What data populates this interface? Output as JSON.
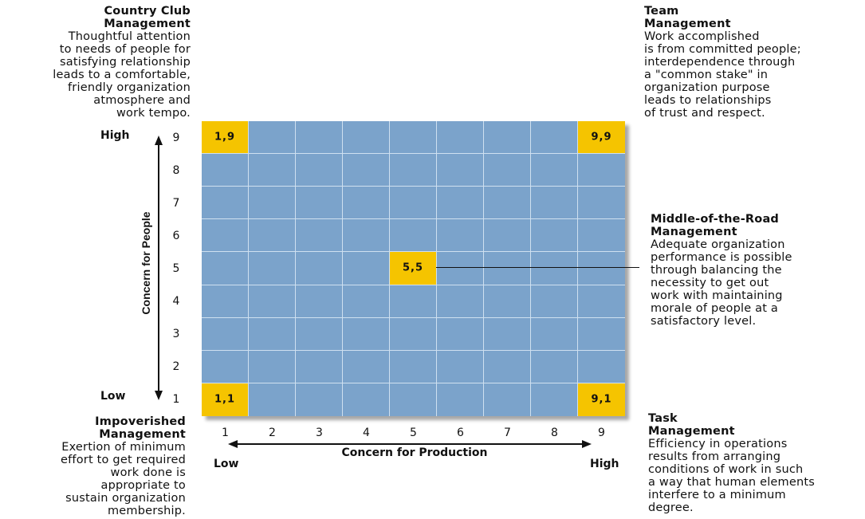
{
  "diagram": {
    "y_axis_title": "Concern for People",
    "x_axis_title": "Concern for Production",
    "y_high": "High",
    "y_low": "Low",
    "x_low": "Low",
    "x_high": "High",
    "y_ticks": [
      "9",
      "8",
      "7",
      "6",
      "5",
      "4",
      "3",
      "2",
      "1"
    ],
    "x_ticks": [
      "1",
      "2",
      "3",
      "4",
      "5",
      "6",
      "7",
      "8",
      "9"
    ],
    "highlight_cells": [
      {
        "label": "1,9",
        "x": 1,
        "y": 9
      },
      {
        "label": "9,9",
        "x": 9,
        "y": 9
      },
      {
        "label": "5,5",
        "x": 5,
        "y": 5
      },
      {
        "label": "1,1",
        "x": 1,
        "y": 1
      },
      {
        "label": "9,1",
        "x": 9,
        "y": 1
      }
    ],
    "grid_color": "#7ba3cb",
    "highlight_color": "#f5c400"
  },
  "styles": {
    "country_club": {
      "title": "Country Club\nManagement",
      "body": "Thoughtful attention\nto needs of people for\nsatisfying relationship\nleads to a comfortable,\nfriendly organization\natmosphere and\nwork tempo."
    },
    "team": {
      "title": "Team\nManagement",
      "body": "Work accomplished\nis from committed people;\ninterdependence through\na \"common stake\" in\norganization purpose\nleads to relationships\nof trust and respect."
    },
    "middle_road": {
      "title": "Middle-of-the-Road\nManagement",
      "body": "Adequate organization\nperformance is possible\nthrough balancing the\nnecessity to get out\nwork with maintaining\nmorale of people at a\nsatisfactory level."
    },
    "impoverished": {
      "title": "Impoverished\nManagement",
      "body": "Exertion of minimum\neffort to get required\nwork done is\nappropriate to\nsustain organization\nmembership."
    },
    "task": {
      "title": "Task\nManagement",
      "body": "Efficiency in operations\nresults from arranging\nconditions of work in such\na way that human elements\ninterfere to a minimum\ndegree."
    }
  }
}
